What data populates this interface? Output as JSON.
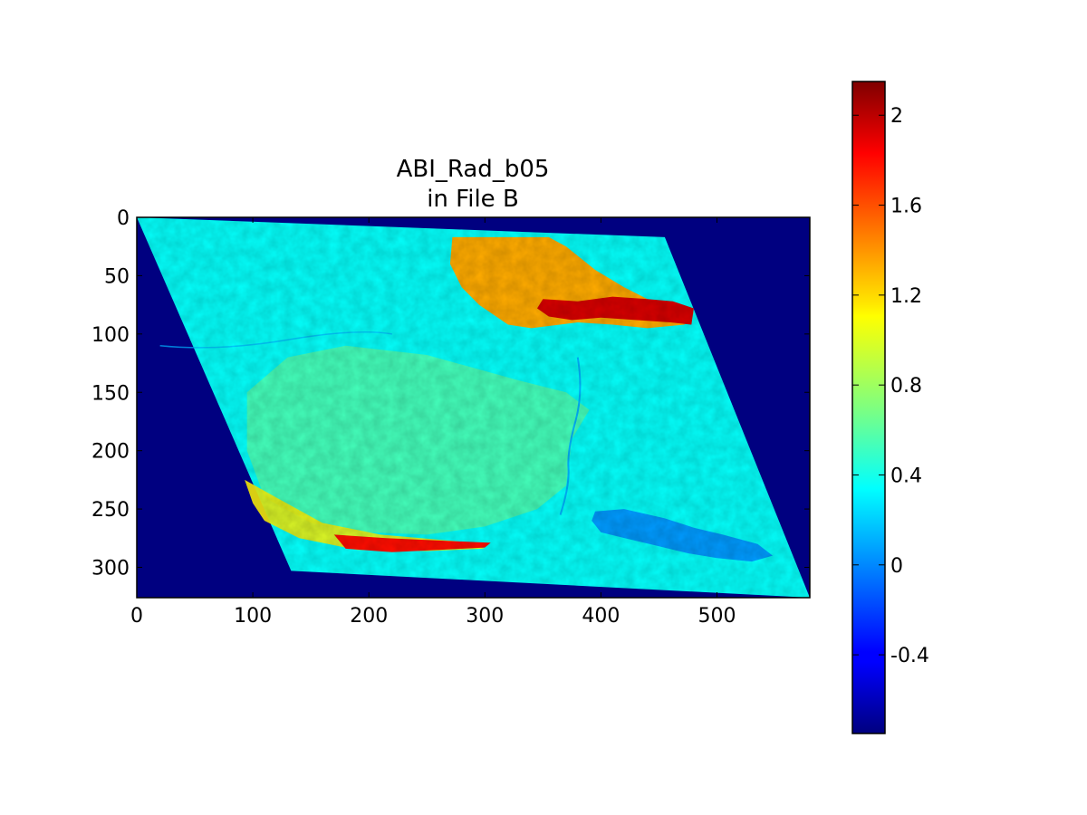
{
  "chart_data": {
    "type": "heatmap",
    "title": "ABI_Rad_b05",
    "subtitle": "in File B",
    "xlabel": "",
    "ylabel": "",
    "image_shape": [
      326,
      580
    ],
    "xlim": [
      0,
      580
    ],
    "ylim": [
      326,
      0
    ],
    "x_ticks": [
      0,
      100,
      200,
      300,
      400,
      500
    ],
    "y_ticks": [
      0,
      50,
      100,
      150,
      200,
      250,
      300
    ],
    "fill_value": -0.75,
    "data_quadrilateral": [
      {
        "col": 0,
        "row": 0
      },
      {
        "col": 455,
        "row": 17
      },
      {
        "col": 580,
        "row": 326
      },
      {
        "col": 133,
        "row": 303
      }
    ],
    "colorbar": {
      "colormap": "jet",
      "vmin": -0.75,
      "vmax": 2.15,
      "ticks": [
        -0.4,
        0,
        0.4,
        0.8,
        1.2,
        1.6,
        2.0
      ],
      "tick_labels": [
        "-0.4",
        "0",
        "0.4",
        "0.8",
        "1.2",
        "1.6",
        "2"
      ],
      "placement": "right"
    },
    "regions": [
      {
        "feature": "background-land",
        "value": 0.35
      },
      {
        "feature": "central-plateau",
        "value": 0.55
      },
      {
        "feature": "northern-cloud",
        "value": 1.3
      },
      {
        "feature": "northeast-cloud-streak",
        "value": 1.9
      },
      {
        "feature": "southern-cloud-streak",
        "value": 1.75
      },
      {
        "feature": "lake",
        "value": 0.05
      },
      {
        "feature": "river",
        "value": 0.12
      },
      {
        "feature": "southwest-cloud-edge",
        "value": 1.1
      }
    ]
  },
  "colors": {
    "fill": "#00007f",
    "axes_frame": "#000000"
  }
}
